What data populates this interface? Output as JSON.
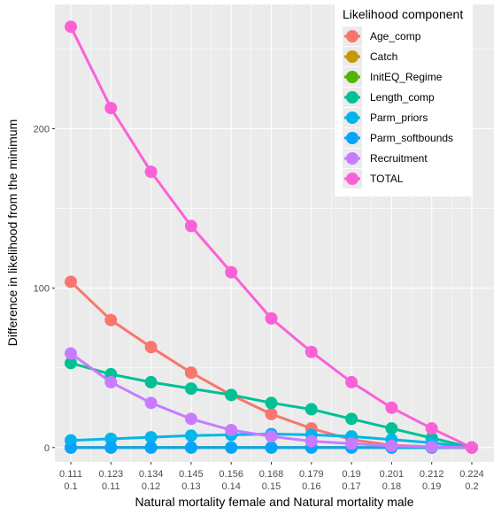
{
  "chart_data": {
    "type": "line",
    "xlabel": "Natural mortality female and Natural mortality male",
    "ylabel": "Difference in likelihood from the minimum",
    "categories": [
      [
        "0.111",
        "0.1"
      ],
      [
        "0.123",
        "0.11"
      ],
      [
        "0.134",
        "0.12"
      ],
      [
        "0.145",
        "0.13"
      ],
      [
        "0.156",
        "0.14"
      ],
      [
        "0.168",
        "0.15"
      ],
      [
        "0.179",
        "0.16"
      ],
      [
        "0.19",
        "0.17"
      ],
      [
        "0.201",
        "0.18"
      ],
      [
        "0.212",
        "0.19"
      ],
      [
        "0.224",
        "0.2"
      ]
    ],
    "ylim": [
      -9,
      278
    ],
    "yticks": [
      0,
      100,
      200
    ],
    "grid": true,
    "background": "#ebebeb",
    "legend": {
      "title": "Likelihood component",
      "placement": "top-right"
    },
    "series": [
      {
        "name": "Age_comp",
        "color": "#F8766D",
        "values": [
          104,
          80,
          63,
          47,
          33,
          21,
          12,
          5,
          1.5,
          0.5,
          0
        ]
      },
      {
        "name": "Catch",
        "color": "#C49A00",
        "values": [
          0,
          0,
          0,
          0,
          0,
          0,
          0,
          0,
          0,
          0,
          0
        ]
      },
      {
        "name": "InitEQ_Regime",
        "color": "#53B400",
        "values": [
          0,
          0,
          0,
          0,
          0,
          0,
          0,
          0,
          0,
          0,
          0
        ]
      },
      {
        "name": "Length_comp",
        "color": "#00C094",
        "values": [
          53,
          46,
          41,
          37,
          33,
          28,
          24,
          18,
          12,
          6,
          0
        ]
      },
      {
        "name": "Parm_priors",
        "color": "#00B6EB",
        "values": [
          4.5,
          5.5,
          6.5,
          7.5,
          8,
          8.5,
          8,
          7,
          5,
          3,
          0
        ]
      },
      {
        "name": "Parm_softbounds",
        "color": "#06A4FF",
        "values": [
          0,
          0,
          0,
          0,
          0,
          0,
          0,
          0,
          0,
          0,
          0
        ]
      },
      {
        "name": "Recruitment",
        "color": "#C77CFF",
        "values": [
          59,
          41,
          28,
          18,
          11,
          7,
          4,
          2.5,
          1,
          0.5,
          0
        ]
      },
      {
        "name": "TOTAL",
        "color": "#FB61D7",
        "values": [
          264,
          213,
          173,
          139,
          110,
          81,
          60,
          41,
          25,
          12,
          0
        ]
      }
    ]
  }
}
